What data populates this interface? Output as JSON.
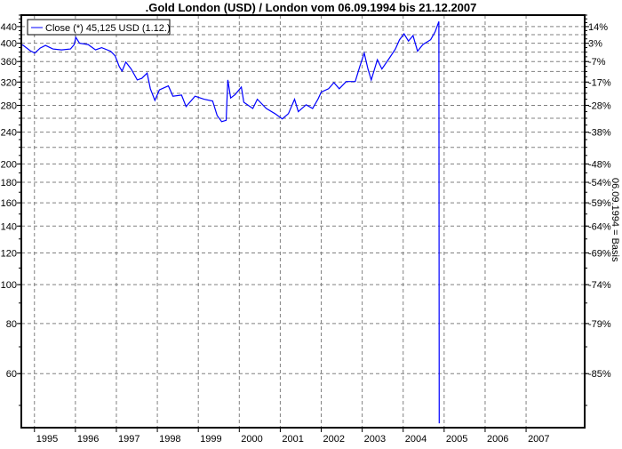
{
  "chart_data": {
    "type": "line",
    "title": ".Gold London (USD) / London vom 06.09.1994 bis 21.12.2007",
    "xlabel": "",
    "ylabel": "",
    "y2label": "06.09.1994 = Basis",
    "y_scale": "log",
    "xlim": [
      1994.68,
      2008.43
    ],
    "ylim": [
      44,
      470
    ],
    "grid": true,
    "legend_placement": "top-left",
    "legend": "Close (*) 45,125 USD (1.12.)",
    "colors": {
      "series": "#0000ff",
      "grid": "#808080",
      "axis": "#000000"
    },
    "x_ticks": [
      "1995",
      "1996",
      "1997",
      "1998",
      "1999",
      "2000",
      "2001",
      "2002",
      "2003",
      "2004",
      "2005",
      "2006",
      "2007"
    ],
    "y_ticks": [
      440,
      400,
      360,
      320,
      280,
      240,
      200,
      180,
      160,
      140,
      120,
      100,
      80,
      60
    ],
    "y_gridlines": [
      440,
      420,
      400,
      380,
      360,
      340,
      320,
      300,
      280,
      260,
      240,
      220,
      200,
      180,
      160,
      140,
      120,
      100,
      80,
      60
    ],
    "y2_ticks": [
      "14%",
      "3%",
      "-7%",
      "-17%",
      "-28%",
      "-38%",
      "-48%",
      "-54%",
      "-59%",
      "-64%",
      "-69%",
      "-74%",
      "-79%",
      "-85%"
    ],
    "series": [
      {
        "name": "Close (*)",
        "points": [
          [
            1994.68,
            397
          ],
          [
            1994.73,
            395
          ],
          [
            1994.9,
            383
          ],
          [
            1995.01,
            378
          ],
          [
            1995.14,
            389
          ],
          [
            1995.27,
            395
          ],
          [
            1995.45,
            387
          ],
          [
            1995.66,
            385
          ],
          [
            1995.88,
            387
          ],
          [
            1995.97,
            397
          ],
          [
            1996.01,
            414
          ],
          [
            1996.1,
            400
          ],
          [
            1996.31,
            397
          ],
          [
            1996.49,
            385
          ],
          [
            1996.64,
            390
          ],
          [
            1996.86,
            382
          ],
          [
            1996.97,
            372
          ],
          [
            1997.07,
            350
          ],
          [
            1997.14,
            341
          ],
          [
            1997.23,
            359
          ],
          [
            1997.36,
            345
          ],
          [
            1997.51,
            324
          ],
          [
            1997.62,
            327
          ],
          [
            1997.75,
            337
          ],
          [
            1997.83,
            308
          ],
          [
            1997.94,
            288
          ],
          [
            1998.05,
            306
          ],
          [
            1998.27,
            313
          ],
          [
            1998.38,
            295
          ],
          [
            1998.59,
            297
          ],
          [
            1998.7,
            278
          ],
          [
            1998.92,
            295
          ],
          [
            1999.14,
            290
          ],
          [
            1999.35,
            287
          ],
          [
            1999.46,
            264
          ],
          [
            1999.57,
            255
          ],
          [
            1999.68,
            257
          ],
          [
            1999.72,
            324
          ],
          [
            1999.79,
            292
          ],
          [
            1999.9,
            298
          ],
          [
            2000.05,
            311
          ],
          [
            2000.11,
            285
          ],
          [
            2000.33,
            275
          ],
          [
            2000.44,
            290
          ],
          [
            2000.66,
            275
          ],
          [
            2000.87,
            267
          ],
          [
            2001.05,
            259
          ],
          [
            2001.2,
            267
          ],
          [
            2001.35,
            290
          ],
          [
            2001.44,
            270
          ],
          [
            2001.63,
            281
          ],
          [
            2001.79,
            275
          ],
          [
            2001.92,
            290
          ],
          [
            2002.0,
            302
          ],
          [
            2002.18,
            308
          ],
          [
            2002.31,
            319
          ],
          [
            2002.44,
            308
          ],
          [
            2002.61,
            321
          ],
          [
            2002.83,
            321
          ],
          [
            2002.94,
            350
          ],
          [
            2003.05,
            378
          ],
          [
            2003.14,
            345
          ],
          [
            2003.22,
            324
          ],
          [
            2003.37,
            364
          ],
          [
            2003.48,
            345
          ],
          [
            2003.66,
            367
          ],
          [
            2003.81,
            387
          ],
          [
            2003.91,
            408
          ],
          [
            2004.02,
            422
          ],
          [
            2004.13,
            405
          ],
          [
            2004.24,
            418
          ],
          [
            2004.35,
            382
          ],
          [
            2004.48,
            397
          ],
          [
            2004.67,
            408
          ],
          [
            2004.78,
            427
          ],
          [
            2004.87,
            453
          ],
          [
            2004.88,
            45.125
          ]
        ]
      }
    ]
  }
}
